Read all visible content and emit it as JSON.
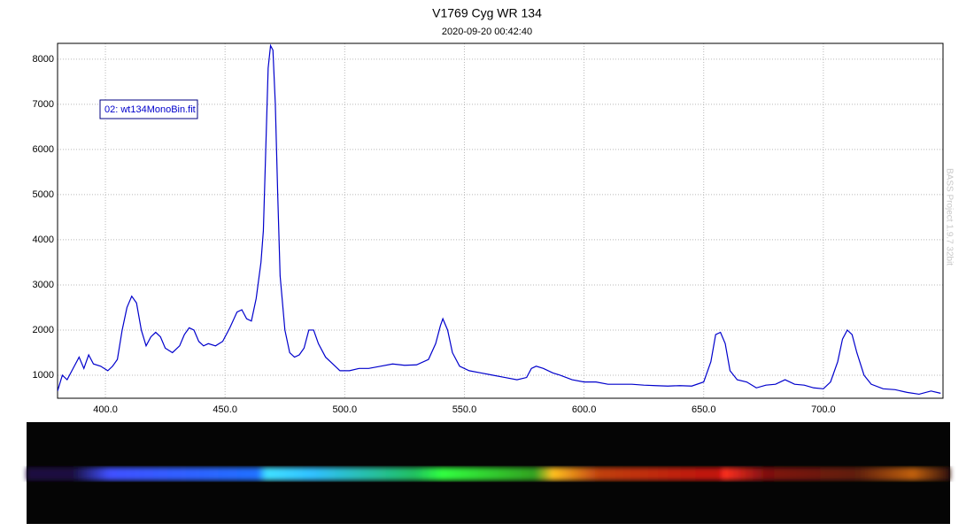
{
  "chart_data": {
    "type": "line",
    "title": "V1769 Cyg  WR 134",
    "subtitle": "2020-09-20 00:42:40",
    "side_note": "BASS Project 1.9.7 32bit",
    "grid": true,
    "xlim": [
      380,
      750
    ],
    "ylim": [
      490,
      8350
    ],
    "xticks": [
      {
        "value": 400,
        "label": "400.0"
      },
      {
        "value": 450,
        "label": "450.0"
      },
      {
        "value": 500,
        "label": "500.0"
      },
      {
        "value": 550,
        "label": "550.0"
      },
      {
        "value": 600,
        "label": "600.0"
      },
      {
        "value": 650,
        "label": "650.0"
      },
      {
        "value": 700,
        "label": "700.0"
      }
    ],
    "yticks": [
      1000,
      2000,
      3000,
      4000,
      5000,
      6000,
      7000,
      8000
    ],
    "x": [
      380,
      382,
      384,
      387,
      389,
      391,
      393,
      395,
      398,
      401,
      403,
      405,
      407,
      409,
      411,
      413,
      415,
      417,
      419,
      421,
      423,
      425,
      428,
      431,
      433,
      435,
      437,
      439,
      441,
      443,
      446,
      449,
      452,
      455,
      457,
      459,
      461,
      463,
      465,
      466,
      467,
      468,
      469,
      470,
      471,
      472,
      473,
      475,
      477,
      479,
      481,
      483,
      485,
      487,
      489,
      492,
      495,
      498,
      502,
      506,
      510,
      515,
      520,
      525,
      530,
      535,
      538,
      540,
      541,
      543,
      545,
      548,
      552,
      557,
      562,
      567,
      572,
      576,
      578,
      580,
      583,
      587,
      590,
      595,
      600,
      605,
      610,
      615,
      620,
      625,
      630,
      635,
      640,
      645,
      650,
      653,
      655,
      657,
      659,
      661,
      664,
      668,
      672,
      676,
      680,
      684,
      688,
      692,
      696,
      700,
      703,
      706,
      708,
      710,
      712,
      714,
      717,
      720,
      725,
      730,
      735,
      740,
      745,
      749
    ],
    "series": [
      {
        "name": "02: wt134MonoBin.fit",
        "color": "#0000cc",
        "values": [
          650,
          1000,
          900,
          1200,
          1400,
          1150,
          1450,
          1250,
          1200,
          1100,
          1200,
          1350,
          2000,
          2500,
          2750,
          2600,
          2000,
          1650,
          1850,
          1950,
          1850,
          1600,
          1500,
          1650,
          1900,
          2050,
          2000,
          1750,
          1650,
          1700,
          1650,
          1750,
          2050,
          2400,
          2450,
          2250,
          2200,
          2700,
          3500,
          4200,
          6000,
          7800,
          8300,
          8200,
          7000,
          5000,
          3200,
          2000,
          1500,
          1400,
          1450,
          1600,
          2000,
          2000,
          1700,
          1400,
          1250,
          1100,
          1100,
          1150,
          1150,
          1200,
          1250,
          1220,
          1230,
          1350,
          1700,
          2100,
          2250,
          2000,
          1500,
          1200,
          1100,
          1050,
          1000,
          950,
          900,
          950,
          1150,
          1200,
          1150,
          1050,
          1000,
          900,
          850,
          850,
          800,
          800,
          800,
          780,
          770,
          760,
          770,
          760,
          850,
          1300,
          1900,
          1950,
          1700,
          1100,
          900,
          850,
          720,
          780,
          800,
          900,
          800,
          780,
          720,
          700,
          850,
          1300,
          1800,
          2000,
          1900,
          1500,
          1000,
          800,
          700,
          680,
          620,
          580,
          650,
          600
        ]
      }
    ]
  }
}
